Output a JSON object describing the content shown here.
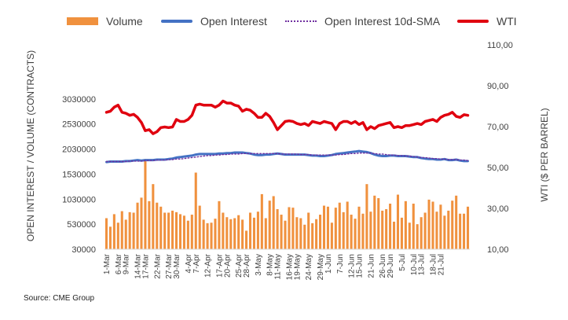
{
  "source": "Source: CME Group",
  "legend": {
    "volume": "Volume",
    "open_interest": "Open Interest",
    "open_interest_sma": "Open Interest 10d-SMA",
    "wti": "WTI"
  },
  "colors": {
    "volume": "#f0913e",
    "open_interest": "#4472c4",
    "open_interest_sma": "#7030a0",
    "wti": "#e0000f"
  },
  "chart_data": {
    "type": "bar",
    "ylabel": "OPEN INTEREST / VOLUME (CONTRACTS)",
    "y2label": "WTI ($ PER BARREL)",
    "ylim": [
      30000,
      3530000
    ],
    "y2lim": [
      10,
      110
    ],
    "yticks": [
      "30000",
      "530000",
      "1030000",
      "1530000",
      "2030000",
      "2530000",
      "3030000"
    ],
    "y2ticks": [
      "10,00",
      "30,00",
      "50,00",
      "70,00",
      "90,00",
      "110,00"
    ],
    "xticks": [
      "1-Mar",
      "6-Mar",
      "9-Mar",
      "14-Mar",
      "17-Mar",
      "22-Mar",
      "27-Mar",
      "30-Mar",
      "4-Apr",
      "7-Apr",
      "12-Apr",
      "17-Apr",
      "20-Apr",
      "25-Apr",
      "28-Apr",
      "3-May",
      "8-May",
      "11-May",
      "16-May",
      "19-May",
      "24-May",
      "29-May",
      "1-Jun",
      "7-Jun",
      "12-Jun",
      "15-Jun",
      "21-Jun",
      "26-Jun",
      "29-Jun",
      "5-Jul",
      "10-Jul",
      "13-Jul",
      "18-Jul",
      "21-Jul"
    ],
    "xtick_positions": [
      0,
      3,
      5,
      8,
      10,
      13,
      16,
      18,
      21,
      23,
      26,
      29,
      31,
      34,
      36,
      39,
      42,
      44,
      47,
      49,
      52,
      55,
      57,
      60,
      63,
      65,
      68,
      71,
      73,
      76,
      79,
      81,
      84,
      86
    ],
    "grid": false,
    "legend_position": "top",
    "series": [
      {
        "name": "Volume",
        "type": "bar",
        "axis": "left",
        "values": [
          650000,
          480000,
          730000,
          560000,
          790000,
          620000,
          770000,
          760000,
          960000,
          1060000,
          1830000,
          990000,
          1330000,
          960000,
          880000,
          760000,
          760000,
          800000,
          770000,
          730000,
          700000,
          600000,
          720000,
          1560000,
          900000,
          620000,
          550000,
          560000,
          640000,
          990000,
          760000,
          670000,
          630000,
          650000,
          710000,
          620000,
          400000,
          760000,
          660000,
          780000,
          1130000,
          650000,
          1000000,
          1090000,
          830000,
          720000,
          600000,
          870000,
          860000,
          670000,
          650000,
          520000,
          760000,
          550000,
          630000,
          720000,
          900000,
          880000,
          560000,
          860000,
          960000,
          770000,
          980000,
          720000,
          640000,
          880000,
          740000,
          1330000,
          780000,
          1100000,
          1050000,
          800000,
          830000,
          940000,
          580000,
          1120000,
          660000,
          990000,
          560000,
          940000,
          530000,
          670000,
          760000,
          1020000,
          980000,
          780000,
          920000,
          700000,
          800000,
          1000000,
          1100000,
          740000,
          740000,
          880000
        ]
      },
      {
        "name": "Open Interest",
        "type": "line",
        "axis": "left",
        "values": [
          1770000,
          1780000,
          1780000,
          1780000,
          1780000,
          1790000,
          1790000,
          1800000,
          1810000,
          1800000,
          1810000,
          1810000,
          1810000,
          1820000,
          1820000,
          1820000,
          1830000,
          1840000,
          1860000,
          1870000,
          1880000,
          1890000,
          1900000,
          1920000,
          1930000,
          1930000,
          1930000,
          1930000,
          1930000,
          1940000,
          1940000,
          1950000,
          1950000,
          1960000,
          1960000,
          1960000,
          1950000,
          1940000,
          1920000,
          1910000,
          1910000,
          1920000,
          1920000,
          1930000,
          1940000,
          1930000,
          1920000,
          1920000,
          1920000,
          1920000,
          1920000,
          1920000,
          1910000,
          1900000,
          1900000,
          1890000,
          1890000,
          1900000,
          1910000,
          1930000,
          1940000,
          1950000,
          1960000,
          1970000,
          1980000,
          1990000,
          1980000,
          1970000,
          1950000,
          1920000,
          1900000,
          1890000,
          1890000,
          1900000,
          1900000,
          1890000,
          1890000,
          1890000,
          1880000,
          1870000,
          1870000,
          1850000,
          1840000,
          1830000,
          1830000,
          1820000,
          1820000,
          1830000,
          1810000,
          1810000,
          1820000,
          1800000,
          1790000,
          1790000
        ]
      },
      {
        "name": "Open Interest 10d-SMA",
        "type": "line",
        "axis": "left",
        "values": [
          1780000,
          1780000,
          1780000,
          1780000,
          1780000,
          1780000,
          1790000,
          1790000,
          1790000,
          1790000,
          1800000,
          1800000,
          1800000,
          1810000,
          1810000,
          1810000,
          1820000,
          1820000,
          1830000,
          1830000,
          1840000,
          1850000,
          1860000,
          1870000,
          1880000,
          1890000,
          1900000,
          1900000,
          1910000,
          1910000,
          1920000,
          1920000,
          1930000,
          1930000,
          1930000,
          1940000,
          1940000,
          1940000,
          1940000,
          1940000,
          1940000,
          1940000,
          1940000,
          1940000,
          1940000,
          1930000,
          1930000,
          1930000,
          1930000,
          1930000,
          1920000,
          1920000,
          1920000,
          1910000,
          1910000,
          1910000,
          1910000,
          1910000,
          1910000,
          1910000,
          1920000,
          1920000,
          1930000,
          1940000,
          1940000,
          1950000,
          1950000,
          1950000,
          1950000,
          1940000,
          1930000,
          1930000,
          1920000,
          1910000,
          1910000,
          1900000,
          1900000,
          1890000,
          1890000,
          1880000,
          1870000,
          1860000,
          1860000,
          1850000,
          1840000,
          1840000,
          1830000,
          1830000,
          1820000,
          1820000,
          1820000,
          1810000,
          1810000,
          1800000
        ]
      },
      {
        "name": "WTI",
        "type": "line",
        "axis": "right",
        "values": [
          77.0,
          77.5,
          79.5,
          80.5,
          77.0,
          76.5,
          75.5,
          76.0,
          74.5,
          72.0,
          68.0,
          68.5,
          66.5,
          67.5,
          69.5,
          69.8,
          69.5,
          69.8,
          73.5,
          72.5,
          72.5,
          73.5,
          75.5,
          80.5,
          81.0,
          80.5,
          80.5,
          80.5,
          79.5,
          80.5,
          82.5,
          81.5,
          81.5,
          80.5,
          80.0,
          77.5,
          78.5,
          78.0,
          76.5,
          74.5,
          74.5,
          76.5,
          75.0,
          72.0,
          68.5,
          70.5,
          72.5,
          72.8,
          72.5,
          71.5,
          71.0,
          71.5,
          70.5,
          72.5,
          72.0,
          71.5,
          72.5,
          72.0,
          71.5,
          68.5,
          71.5,
          72.5,
          72.5,
          71.5,
          72.5,
          71.0,
          72.0,
          68.5,
          70.0,
          69.0,
          70.5,
          71.0,
          71.5,
          72.0,
          69.5,
          70.0,
          69.5,
          70.5,
          70.5,
          71.0,
          71.5,
          71.0,
          72.5,
          73.0,
          73.5,
          72.5,
          74.5,
          75.5,
          76.0,
          77.0,
          75.0,
          74.5,
          75.8,
          75.5
        ]
      }
    ]
  }
}
